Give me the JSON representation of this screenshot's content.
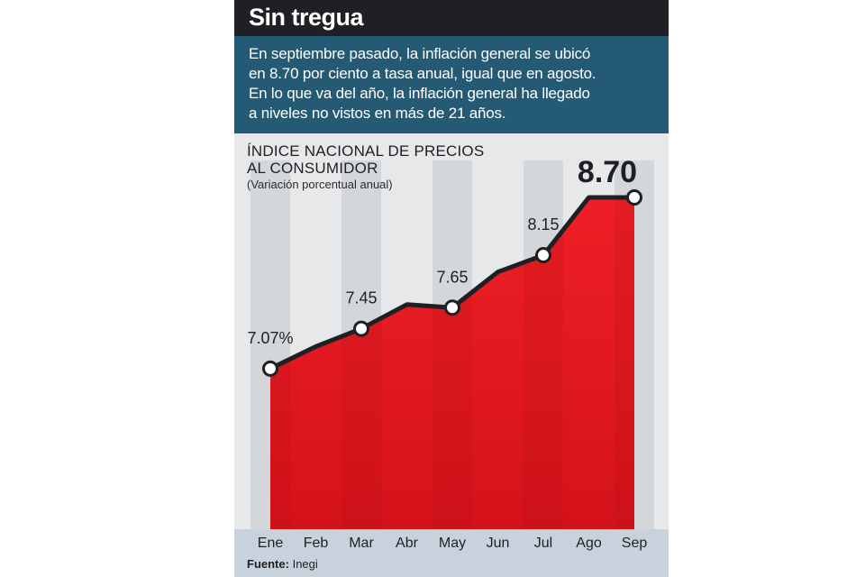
{
  "header": {
    "title": "Sin tregua",
    "intro_lines": [
      "En septiembre pasado, la inflación general se ubicó",
      "en 8.70 por ciento a tasa anual, igual que en agosto.",
      "En lo que va del año, la inflación general ha llegado",
      "a niveles no vistos en más de 21 años."
    ]
  },
  "chart_data": {
    "type": "area",
    "title_lines": [
      "ÍNDICE NACIONAL DE PRECIOS",
      "AL CONSUMIDOR"
    ],
    "subtitle": "(Variación porcentual anual)",
    "categories": [
      "Ene",
      "Feb",
      "Mar",
      "Abr",
      "May",
      "Jun",
      "Jul",
      "Ago",
      "Sep"
    ],
    "series": [
      {
        "name": "Inflación general",
        "values": [
          7.07,
          7.28,
          7.45,
          7.68,
          7.65,
          7.99,
          8.15,
          8.7,
          8.7
        ]
      }
    ],
    "markers": [
      0,
      2,
      4,
      6,
      8
    ],
    "labels": [
      {
        "index": 0,
        "text": "7.07%"
      },
      {
        "index": 2,
        "text": "7.45"
      },
      {
        "index": 4,
        "text": "7.65"
      },
      {
        "index": 6,
        "text": "8.15"
      },
      {
        "index": 8,
        "text": "8.70",
        "emphasis": true
      }
    ],
    "ylim": [
      6.15,
      8.7
    ],
    "xlabel": "",
    "ylabel": "",
    "grid": false
  },
  "footer": {
    "source_label": "Fuente:",
    "source_value": "Inegi"
  },
  "colors": {
    "title_bg": "#1f2023",
    "intro_bg": "#245a73",
    "card_bg": "#e6e8ea",
    "band_bg": "#d4d7da",
    "area_fill": "#e8151e",
    "area_fill_dark": "#b10f16",
    "line": "#1f2023",
    "source_bg": "#c7d2dc"
  }
}
